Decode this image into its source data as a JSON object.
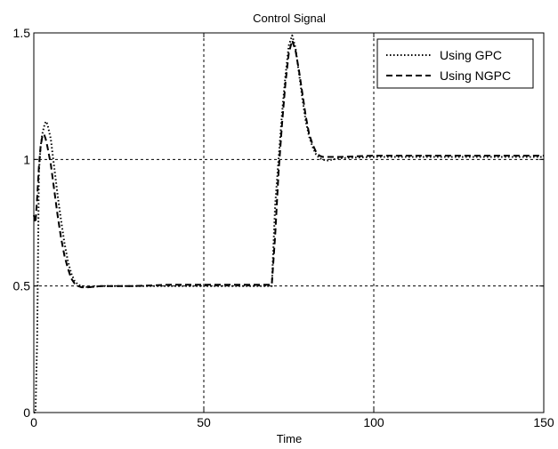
{
  "chart_data": {
    "type": "line",
    "title": "Control Signal",
    "xlabel": "Time",
    "ylabel": "",
    "xlim": [
      0,
      150
    ],
    "ylim": [
      0,
      1.5
    ],
    "xticks": [
      0,
      50,
      100,
      150
    ],
    "yticks": [
      0,
      0.5,
      1,
      1.5
    ],
    "xtick_labels": [
      "0",
      "50",
      "100",
      "150"
    ],
    "ytick_labels": [
      "0",
      "0.5",
      "1",
      "1.5"
    ],
    "grid": true,
    "legend_position": "top-right",
    "series": [
      {
        "name": "Using GPC",
        "line_style": "dotted",
        "color": "#000000",
        "x": [
          0,
          0.5,
          1,
          1.5,
          2,
          2.5,
          3,
          3.5,
          4,
          5,
          6,
          7,
          8,
          9,
          10,
          11,
          12,
          13,
          14,
          16,
          20,
          30,
          40,
          50,
          60,
          68,
          69,
          70,
          71,
          72,
          73,
          74,
          75,
          76,
          77,
          78,
          79,
          80,
          81,
          82,
          83,
          84,
          85,
          86,
          88,
          90,
          100,
          110,
          120,
          130,
          140,
          150
        ],
        "y": [
          0,
          0,
          0.3,
          0.95,
          1.05,
          1.1,
          1.13,
          1.15,
          1.14,
          1.08,
          0.97,
          0.86,
          0.76,
          0.67,
          0.6,
          0.55,
          0.52,
          0.505,
          0.5,
          0.495,
          0.5,
          0.5,
          0.5,
          0.5,
          0.5,
          0.5,
          0.5,
          0.5,
          0.82,
          1.0,
          1.18,
          1.33,
          1.45,
          1.49,
          1.44,
          1.34,
          1.24,
          1.15,
          1.09,
          1.05,
          1.02,
          1.005,
          1.0,
          0.995,
          1.0,
          1.005,
          1.01,
          1.01,
          1.01,
          1.01,
          1.01,
          1.01
        ]
      },
      {
        "name": "Using NGPC",
        "line_style": "dashed",
        "color": "#000000",
        "x": [
          0,
          0.5,
          1,
          1.5,
          2,
          2.5,
          3,
          3.5,
          4,
          5,
          6,
          7,
          8,
          9,
          10,
          11,
          12,
          13,
          14,
          16,
          20,
          30,
          40,
          50,
          60,
          68,
          69,
          70,
          71,
          72,
          73,
          74,
          75,
          76,
          77,
          78,
          79,
          80,
          81,
          82,
          83,
          84,
          85,
          86,
          88,
          90,
          100,
          110,
          120,
          130,
          140,
          150
        ],
        "y": [
          0.78,
          0.75,
          0.85,
          0.97,
          1.05,
          1.09,
          1.1,
          1.08,
          1.05,
          0.98,
          0.88,
          0.78,
          0.69,
          0.62,
          0.57,
          0.53,
          0.51,
          0.5,
          0.495,
          0.495,
          0.5,
          0.5,
          0.505,
          0.505,
          0.505,
          0.505,
          0.505,
          0.505,
          0.7,
          0.95,
          1.14,
          1.3,
          1.42,
          1.47,
          1.43,
          1.35,
          1.26,
          1.17,
          1.1,
          1.06,
          1.03,
          1.015,
          1.01,
          1.01,
          1.01,
          1.01,
          1.015,
          1.015,
          1.015,
          1.015,
          1.015,
          1.015
        ]
      }
    ]
  }
}
